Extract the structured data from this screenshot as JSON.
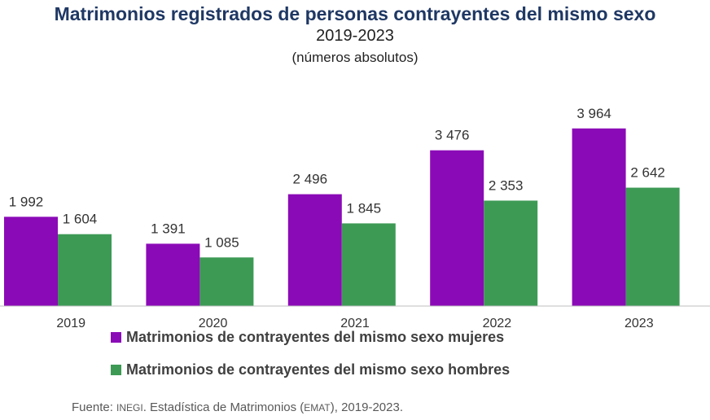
{
  "chart_data": {
    "type": "bar",
    "title": "Matrimonios registrados de personas contrayentes del mismo sexo",
    "subtitle": "2019-2023",
    "units_note": "(números absolutos)",
    "categories": [
      "2019",
      "2020",
      "2021",
      "2022",
      "2023"
    ],
    "value_labels": {
      "mujeres": [
        "1 992",
        "1 391",
        "2 496",
        "3 476",
        "3 964"
      ],
      "hombres": [
        "1 604",
        "1 085",
        "1 845",
        "2 353",
        "2 642"
      ]
    },
    "series": [
      {
        "name": "Matrimonios de contrayentes del mismo sexo mujeres",
        "color": "#8b0ab7",
        "values": [
          1992,
          1391,
          2496,
          3476,
          3964
        ]
      },
      {
        "name": "Matrimonios de contrayentes del mismo sexo hombres",
        "color": "#3d9a55",
        "values": [
          1604,
          1085,
          1845,
          2353,
          2642
        ]
      }
    ],
    "ylim": [
      0,
      4000
    ],
    "grid": false,
    "legend_position": "bottom"
  },
  "source": {
    "prefix": "Fuente: ",
    "org": "INEGI",
    "middle": ". Estadística de Matrimonios (",
    "abbr": "EMAT",
    "suffix": "), 2019-2023."
  }
}
